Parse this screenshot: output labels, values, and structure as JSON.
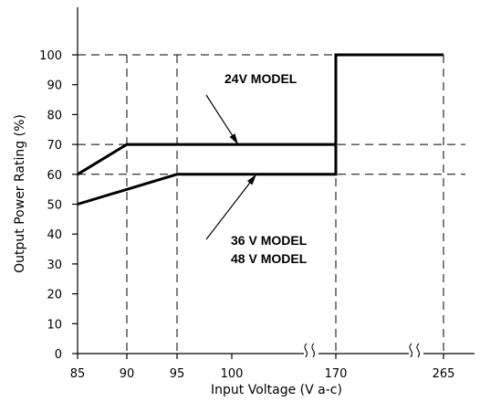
{
  "chart_data": {
    "type": "line",
    "xlabel": "Input Voltage (V a-c)",
    "ylabel": "Output Power Rating (%)",
    "x_ticks": [
      "85",
      "90",
      "95",
      "100",
      "170",
      "265"
    ],
    "y_ticks": [
      "0",
      "10",
      "20",
      "30",
      "40",
      "50",
      "60",
      "70",
      "80",
      "90",
      "100"
    ],
    "ylim": [
      0,
      100
    ],
    "axis_breaks": [
      "between 100 and 170",
      "between 170 and 265"
    ],
    "grid": "dashed lines at 70, 60 and 100 and at x = 90, 95, 170, 265",
    "series": [
      {
        "name": "24V MODEL",
        "points": [
          {
            "x": "85",
            "y": 60
          },
          {
            "x": "90",
            "y": 70
          },
          {
            "x": "170",
            "y": 70
          },
          {
            "x": "170",
            "y": 100
          },
          {
            "x": "265",
            "y": 100
          }
        ]
      },
      {
        "name": "36 V MODEL / 48 V MODEL",
        "points": [
          {
            "x": "85",
            "y": 50
          },
          {
            "x": "95",
            "y": 60
          },
          {
            "x": "170",
            "y": 60
          },
          {
            "x": "170",
            "y": 100
          },
          {
            "x": "265",
            "y": 100
          }
        ]
      }
    ],
    "annotations": [
      {
        "text": "24V MODEL",
        "points_to": "24V MODEL"
      },
      {
        "text": "36 V MODEL",
        "points_to": "36 V MODEL / 48 V MODEL"
      },
      {
        "text": "48 V MODEL",
        "points_to": "36 V MODEL / 48 V MODEL"
      }
    ]
  }
}
